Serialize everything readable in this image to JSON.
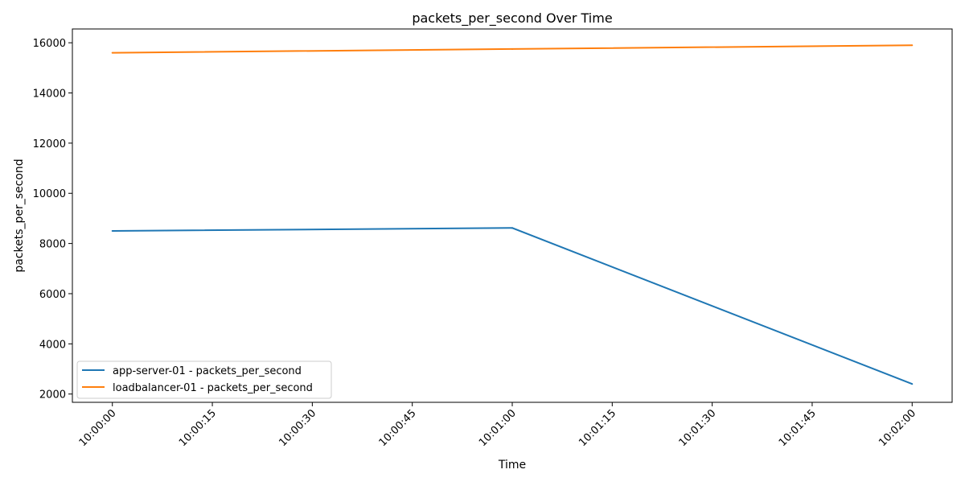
{
  "chart_data": {
    "type": "line",
    "title": "packets_per_second Over Time",
    "xlabel": "Time",
    "ylabel": "packets_per_second",
    "x_ticks": [
      "10:00:00",
      "10:00:15",
      "10:00:30",
      "10:00:45",
      "10:01:00",
      "10:01:15",
      "10:01:30",
      "10:01:45",
      "10:02:00"
    ],
    "x_range_seconds": [
      -6,
      126
    ],
    "y_ticks": [
      2000,
      4000,
      6000,
      8000,
      10000,
      12000,
      14000,
      16000
    ],
    "ylim": [
      1670,
      16550
    ],
    "grid": false,
    "legend_position": "lower-left",
    "series": [
      {
        "name": "app-server-01 - packets_per_second",
        "color": "#1f77b4",
        "x": [
          "10:00:00",
          "10:01:00",
          "10:02:00"
        ],
        "y": [
          8500,
          8620,
          2400
        ]
      },
      {
        "name": "loadbalancer-01 - packets_per_second",
        "color": "#ff7f0e",
        "x": [
          "10:00:00",
          "10:01:00",
          "10:02:00"
        ],
        "y": [
          15600,
          15750,
          15900
        ]
      }
    ]
  }
}
